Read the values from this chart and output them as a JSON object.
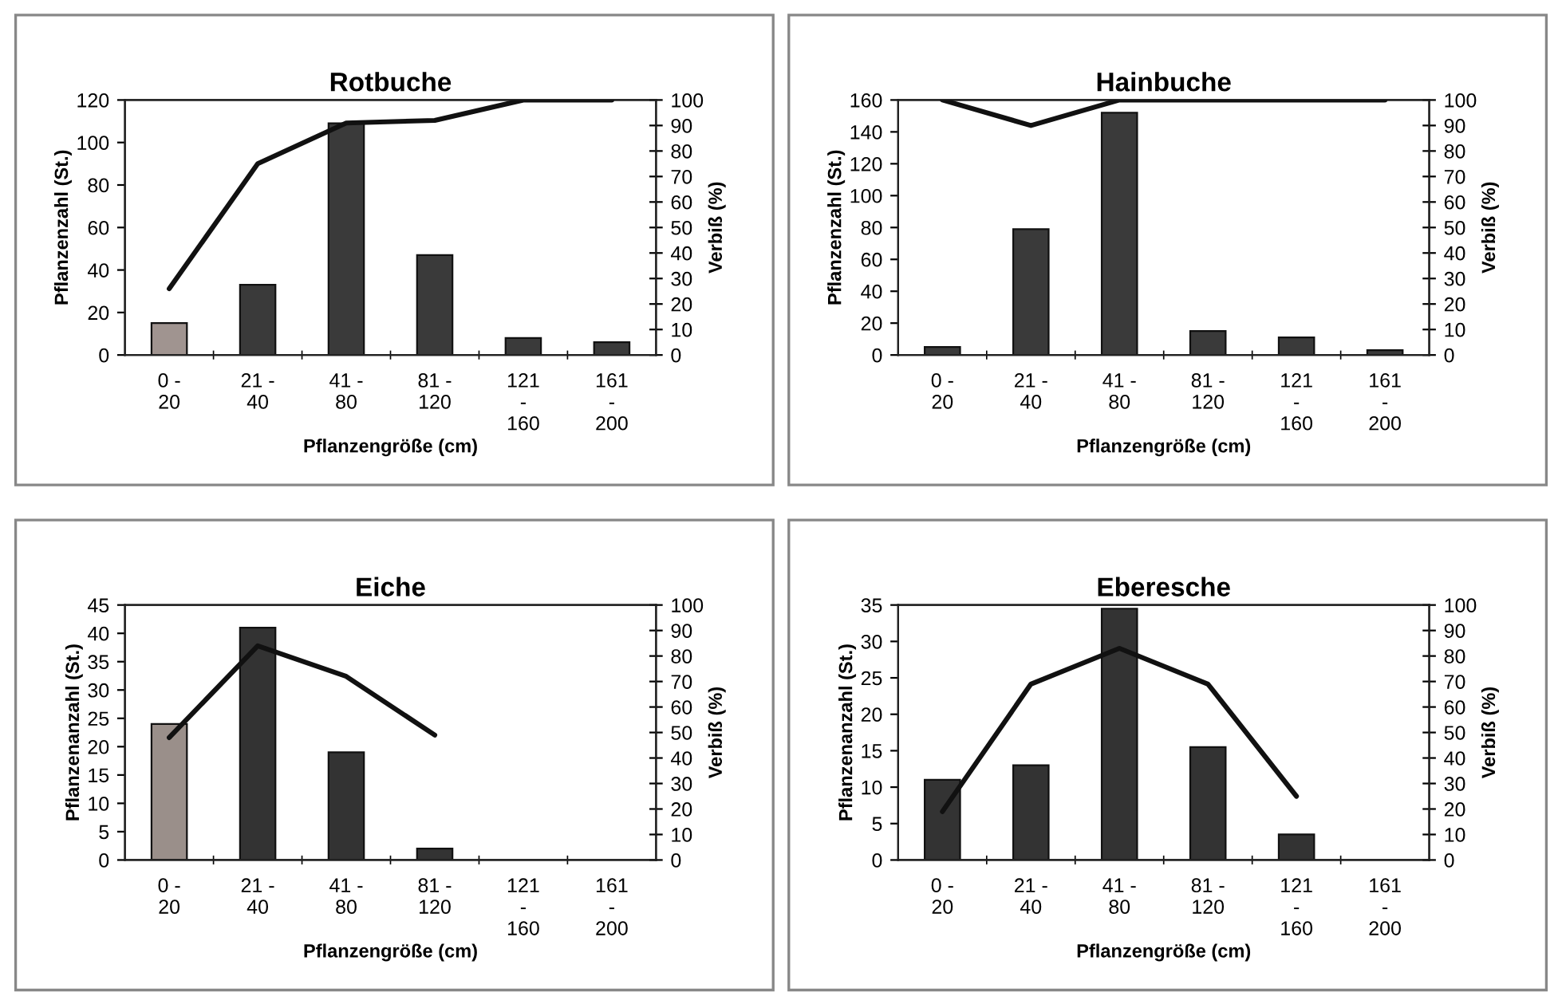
{
  "chart_data": [
    {
      "type": "bar",
      "title": "Rotbuche",
      "xlabel": "Pflanzengröße (cm)",
      "ylabel": "Pflanzenzahl (St.)",
      "y2label": "Verbiß (%)",
      "categories": [
        "0 -\n20",
        "21 -\n40",
        "41 -\n80",
        "81 -\n120",
        "121\n-\n160",
        "161\n-\n200"
      ],
      "series": [
        {
          "colors": [
            "#a09490",
            "#3a3a3a",
            "#3a3a3a",
            "#3a3a3a",
            "#3a3a3a",
            "#3a3a3a"
          ],
          "values": [
            15,
            33,
            109,
            47,
            8,
            6
          ]
        },
        {
          "type": "line",
          "axis": "y2",
          "color": "#111111",
          "values": [
            26,
            75,
            91,
            92,
            100,
            100
          ]
        }
      ],
      "ylim": [
        0,
        120
      ],
      "yticks": [
        0,
        20,
        40,
        60,
        80,
        100,
        120
      ],
      "y2lim": [
        0,
        100
      ],
      "y2ticks": [
        0,
        10,
        20,
        30,
        40,
        50,
        60,
        70,
        80,
        90,
        100
      ],
      "grid": false,
      "legend": false
    },
    {
      "type": "bar",
      "title": "Hainbuche",
      "xlabel": "Pflanzengröße (cm)",
      "ylabel": "Pflanzenzahl (St.)",
      "y2label": "Verbiß (%)",
      "categories": [
        "0 -\n20",
        "21 -\n40",
        "41 -\n80",
        "81 -\n120",
        "121\n-\n160",
        "161\n-\n200"
      ],
      "series": [
        {
          "colors": [
            "#3a3a3a",
            "#3a3a3a",
            "#3a3a3a",
            "#3a3a3a",
            "#3a3a3a",
            "#3a3a3a"
          ],
          "values": [
            5,
            79,
            152,
            15,
            11,
            3
          ]
        },
        {
          "type": "line",
          "axis": "y2",
          "color": "#111111",
          "values": [
            100,
            90,
            100,
            100,
            100,
            100
          ]
        }
      ],
      "ylim": [
        0,
        160
      ],
      "yticks": [
        0,
        20,
        40,
        60,
        80,
        100,
        120,
        140,
        160
      ],
      "y2lim": [
        0,
        100
      ],
      "y2ticks": [
        0,
        10,
        20,
        30,
        40,
        50,
        60,
        70,
        80,
        90,
        100
      ],
      "grid": false,
      "legend": false
    },
    {
      "type": "bar",
      "title": "Eiche",
      "xlabel": "Pflanzengröße (cm)",
      "ylabel": "Pflanzenanzahl (St.)",
      "y2label": "Verbiß (%)",
      "categories": [
        "0 -\n20",
        "21 -\n40",
        "41 -\n80",
        "81 -\n120",
        "121\n-\n160",
        "161\n-\n200"
      ],
      "series": [
        {
          "colors": [
            "#9a8f8a",
            "#333333",
            "#333333",
            "#333333",
            "#333333",
            "#333333"
          ],
          "values": [
            24,
            41,
            19,
            2,
            null,
            null
          ]
        },
        {
          "type": "line",
          "axis": "y2",
          "color": "#111111",
          "values": [
            48,
            84,
            72,
            49,
            null,
            null
          ]
        }
      ],
      "ylim": [
        0,
        45
      ],
      "yticks": [
        0,
        5,
        10,
        15,
        20,
        25,
        30,
        35,
        40,
        45
      ],
      "y2lim": [
        0,
        100
      ],
      "y2ticks": [
        0,
        10,
        20,
        30,
        40,
        50,
        60,
        70,
        80,
        90,
        100
      ],
      "grid": false,
      "legend": false
    },
    {
      "type": "bar",
      "title": "Eberesche",
      "xlabel": "Pflanzengröße (cm)",
      "ylabel": "Pflanzenanzahl (St.)",
      "y2label": "Verbiß (%)",
      "categories": [
        "0 -\n20",
        "21 -\n40",
        "41 -\n80",
        "81 -\n120",
        "121\n-\n160",
        "161\n-\n200"
      ],
      "series": [
        {
          "colors": [
            "#333333",
            "#333333",
            "#333333",
            "#333333",
            "#333333",
            "#333333"
          ],
          "values": [
            11,
            13,
            34.5,
            15.5,
            3.5,
            null
          ]
        },
        {
          "type": "line",
          "axis": "y2",
          "color": "#111111",
          "values": [
            19,
            69,
            83,
            69,
            25,
            null
          ]
        }
      ],
      "ylim": [
        0,
        35
      ],
      "yticks": [
        0,
        5,
        10,
        15,
        20,
        25,
        30,
        35
      ],
      "y2lim": [
        0,
        100
      ],
      "y2ticks": [
        0,
        10,
        20,
        30,
        40,
        50,
        60,
        70,
        80,
        90,
        100
      ],
      "grid": false,
      "legend": false
    }
  ]
}
